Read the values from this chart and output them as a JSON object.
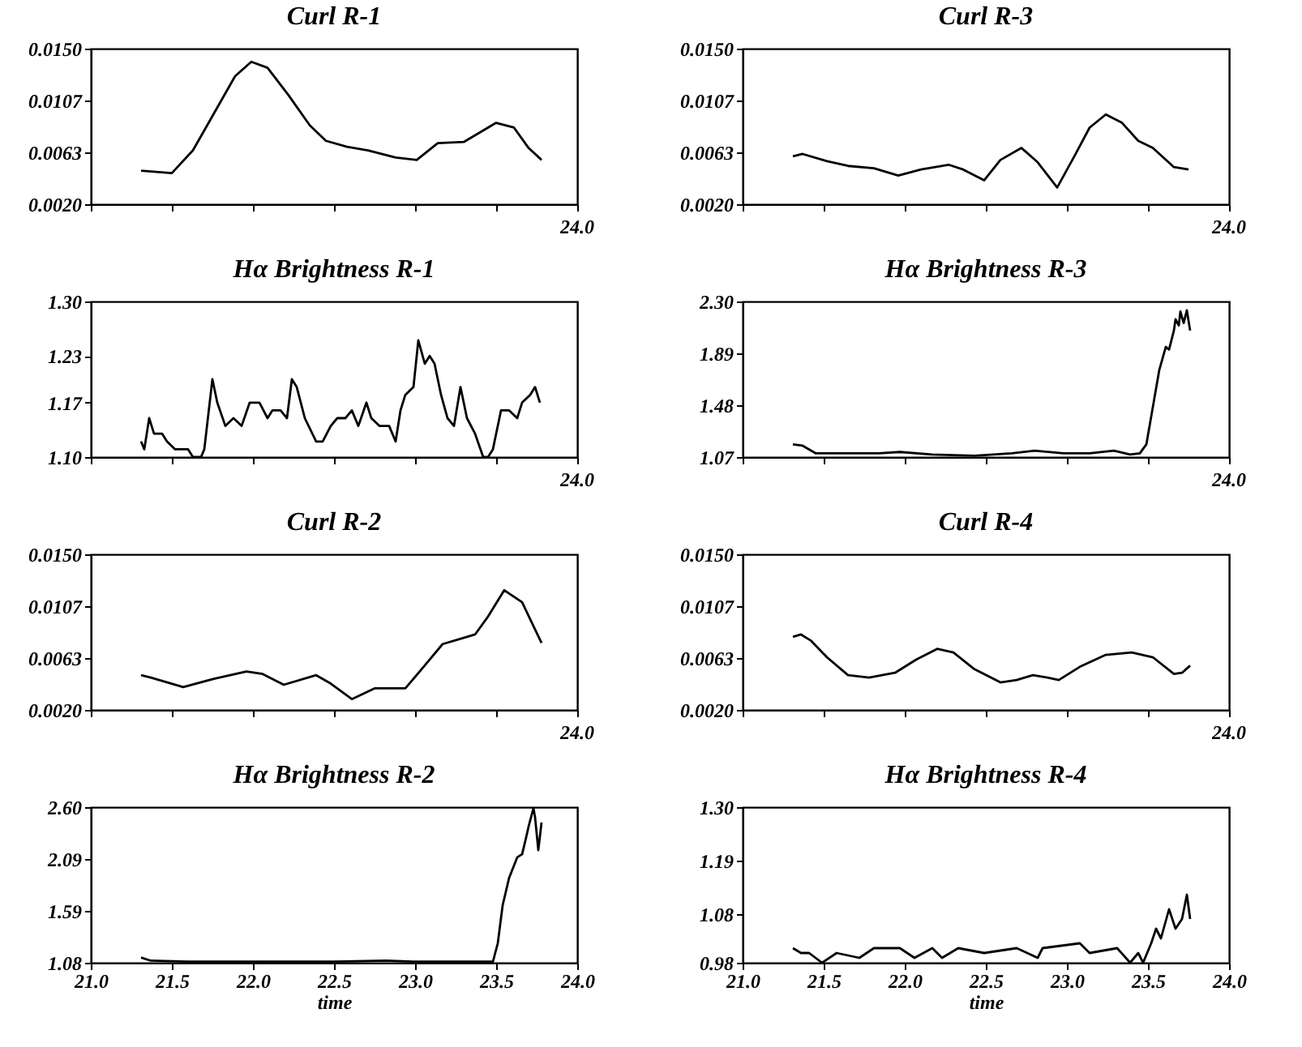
{
  "chart_data": [
    {
      "type": "line",
      "title": "Curl R-1",
      "annotations": [
        "24.0"
      ],
      "tick_labels": "y",
      "xlim": [
        21,
        24
      ],
      "ylim": [
        0.002,
        0.015
      ],
      "yticks": [
        {
          "value": 0.002,
          "label": "0.0020"
        },
        {
          "value": 0.0063,
          "label": "0.0063"
        },
        {
          "value": 0.0107,
          "label": "0.0107"
        },
        {
          "value": 0.015,
          "label": "0.0150"
        }
      ],
      "x": [
        21.31,
        21.5,
        21.63,
        21.76,
        21.89,
        21.99,
        22.09,
        22.22,
        22.35,
        22.45,
        22.58,
        22.71,
        22.88,
        23.01,
        23.14,
        23.3,
        23.5,
        23.61,
        23.7,
        23.78
      ],
      "series": [
        {
          "color": "#000000",
          "values": [
            0.0048,
            0.0046,
            0.0065,
            0.0096,
            0.0127,
            0.0139,
            0.0134,
            0.0111,
            0.0086,
            0.0073,
            0.0068,
            0.0065,
            0.0059,
            0.0057,
            0.0071,
            0.0072,
            0.0088,
            0.0084,
            0.0067,
            0.0057
          ]
        }
      ]
    },
    {
      "type": "line",
      "title": "Curl R-3",
      "annotations": [
        "24.0"
      ],
      "tick_labels": "y",
      "xlim": [
        21,
        24
      ],
      "ylim": [
        0.002,
        0.015
      ],
      "yticks": [
        {
          "value": 0.002,
          "label": "0.0020"
        },
        {
          "value": 0.0063,
          "label": "0.0063"
        },
        {
          "value": 0.0107,
          "label": "0.0107"
        },
        {
          "value": 0.015,
          "label": "0.0150"
        }
      ],
      "x": [
        21.31,
        21.37,
        21.52,
        21.65,
        21.81,
        21.96,
        22.1,
        22.27,
        22.36,
        22.49,
        22.59,
        22.72,
        22.82,
        22.94,
        23.05,
        23.14,
        23.24,
        23.34,
        23.44,
        23.53,
        23.66,
        23.75
      ],
      "series": [
        {
          "color": "#000000",
          "values": [
            0.006,
            0.0062,
            0.0056,
            0.0052,
            0.005,
            0.0044,
            0.0049,
            0.0053,
            0.0049,
            0.004,
            0.0057,
            0.0067,
            0.0055,
            0.0034,
            0.0061,
            0.0084,
            0.0095,
            0.0088,
            0.0073,
            0.0067,
            0.0051,
            0.0049
          ]
        }
      ]
    },
    {
      "type": "line",
      "title": "Hα Brightness R-1",
      "annotations": [
        "24.0"
      ],
      "tick_labels": "y",
      "xlim": [
        21,
        24
      ],
      "ylim": [
        1.1,
        1.3
      ],
      "yticks": [
        {
          "value": 1.1,
          "label": "1.10"
        },
        {
          "value": 1.17,
          "label": "1.17"
        },
        {
          "value": 1.23,
          "label": "1.23"
        },
        {
          "value": 1.3,
          "label": "1.30"
        }
      ],
      "x": [
        21.31,
        21.33,
        21.36,
        21.39,
        21.44,
        21.47,
        21.52,
        21.55,
        21.6,
        21.63,
        21.68,
        21.7,
        21.75,
        21.78,
        21.83,
        21.88,
        21.93,
        21.98,
        22.04,
        22.09,
        22.12,
        22.17,
        22.21,
        22.24,
        22.27,
        22.32,
        22.39,
        22.43,
        22.48,
        22.52,
        22.57,
        22.61,
        22.65,
        22.7,
        22.73,
        22.78,
        22.84,
        22.88,
        22.91,
        22.94,
        22.99,
        23.02,
        23.06,
        23.09,
        23.12,
        23.16,
        23.2,
        23.24,
        23.28,
        23.32,
        23.37,
        23.42,
        23.45,
        23.48,
        23.53,
        23.58,
        23.63,
        23.66,
        23.71,
        23.74,
        23.77
      ],
      "series": [
        {
          "color": "#000000",
          "values": [
            1.12,
            1.11,
            1.15,
            1.13,
            1.13,
            1.12,
            1.11,
            1.11,
            1.11,
            1.1,
            1.1,
            1.11,
            1.2,
            1.17,
            1.14,
            1.15,
            1.14,
            1.17,
            1.17,
            1.15,
            1.16,
            1.16,
            1.15,
            1.2,
            1.19,
            1.15,
            1.12,
            1.12,
            1.14,
            1.15,
            1.15,
            1.16,
            1.14,
            1.17,
            1.15,
            1.14,
            1.14,
            1.12,
            1.16,
            1.18,
            1.19,
            1.25,
            1.22,
            1.23,
            1.22,
            1.18,
            1.15,
            1.14,
            1.19,
            1.15,
            1.13,
            1.1,
            1.1,
            1.11,
            1.16,
            1.16,
            1.15,
            1.17,
            1.18,
            1.19,
            1.17
          ]
        }
      ]
    },
    {
      "type": "line",
      "title": "Hα Brightness R-3",
      "annotations": [
        "24.0"
      ],
      "tick_labels": "y",
      "xlim": [
        21,
        24
      ],
      "ylim": [
        1.07,
        2.3
      ],
      "yticks": [
        {
          "value": 1.07,
          "label": "1.07"
        },
        {
          "value": 1.48,
          "label": "1.48"
        },
        {
          "value": 1.89,
          "label": "1.89"
        },
        {
          "value": 2.3,
          "label": "2.30"
        }
      ],
      "x": [
        21.31,
        21.37,
        21.45,
        21.58,
        21.84,
        21.97,
        22.17,
        22.43,
        22.66,
        22.8,
        22.98,
        23.14,
        23.29,
        23.39,
        23.45,
        23.49,
        23.52,
        23.57,
        23.61,
        23.63,
        23.66,
        23.67,
        23.69,
        23.7,
        23.72,
        23.74,
        23.76
      ],
      "series": [
        {
          "color": "#000000",
          "values": [
            1.17,
            1.16,
            1.1,
            1.1,
            1.1,
            1.11,
            1.09,
            1.08,
            1.1,
            1.12,
            1.1,
            1.1,
            1.12,
            1.09,
            1.1,
            1.17,
            1.39,
            1.76,
            1.94,
            1.92,
            2.07,
            2.16,
            2.11,
            2.22,
            2.13,
            2.23,
            2.07
          ]
        }
      ]
    },
    {
      "type": "line",
      "title": "Curl R-2",
      "annotations": [
        "24.0"
      ],
      "tick_labels": "y",
      "xlim": [
        21,
        24
      ],
      "ylim": [
        0.002,
        0.015
      ],
      "yticks": [
        {
          "value": 0.002,
          "label": "0.0020"
        },
        {
          "value": 0.0063,
          "label": "0.0063"
        },
        {
          "value": 0.0107,
          "label": "0.0107"
        },
        {
          "value": 0.015,
          "label": "0.0150"
        }
      ],
      "x": [
        21.31,
        21.37,
        21.57,
        21.76,
        21.96,
        22.06,
        22.19,
        22.39,
        22.48,
        22.61,
        22.75,
        22.94,
        23.04,
        23.17,
        23.27,
        23.37,
        23.45,
        23.55,
        23.66,
        23.73,
        23.78
      ],
      "series": [
        {
          "color": "#000000",
          "values": [
            0.0049,
            0.0047,
            0.0039,
            0.0046,
            0.0052,
            0.005,
            0.0041,
            0.0049,
            0.0042,
            0.0029,
            0.0038,
            0.0038,
            0.0054,
            0.0075,
            0.0079,
            0.0083,
            0.0098,
            0.012,
            0.011,
            0.009,
            0.0076
          ]
        }
      ]
    },
    {
      "type": "line",
      "title": "Curl R-4",
      "annotations": [
        "24.0"
      ],
      "tick_labels": "y",
      "xlim": [
        21,
        24
      ],
      "ylim": [
        0.002,
        0.015
      ],
      "yticks": [
        {
          "value": 0.002,
          "label": "0.0020"
        },
        {
          "value": 0.0063,
          "label": "0.0063"
        },
        {
          "value": 0.0107,
          "label": "0.0107"
        },
        {
          "value": 0.015,
          "label": "0.0150"
        }
      ],
      "x": [
        21.31,
        21.36,
        21.42,
        21.52,
        21.65,
        21.78,
        21.94,
        22.07,
        22.2,
        22.3,
        22.43,
        22.59,
        22.69,
        22.79,
        22.88,
        22.95,
        23.08,
        23.24,
        23.4,
        23.53,
        23.66,
        23.71,
        23.76
      ],
      "series": [
        {
          "color": "#000000",
          "values": [
            0.0081,
            0.0083,
            0.0078,
            0.0064,
            0.0049,
            0.0047,
            0.0051,
            0.0062,
            0.0071,
            0.0068,
            0.0054,
            0.0043,
            0.0045,
            0.0049,
            0.0047,
            0.0045,
            0.0056,
            0.0066,
            0.0068,
            0.0064,
            0.005,
            0.0051,
            0.0057
          ]
        }
      ]
    },
    {
      "type": "line",
      "title": "Hα Brightness R-2",
      "xlabel": "time",
      "xlim": [
        21,
        24
      ],
      "xticks": [
        {
          "value": 21,
          "label": "21.0"
        },
        {
          "value": 21.5,
          "label": "21.5"
        },
        {
          "value": 22,
          "label": "22.0"
        },
        {
          "value": 22.5,
          "label": "22.5"
        },
        {
          "value": 23,
          "label": "23.0"
        },
        {
          "value": 23.5,
          "label": "23.5"
        },
        {
          "value": 24,
          "label": "24.0"
        }
      ],
      "ylim": [
        1.08,
        2.6
      ],
      "yticks": [
        {
          "value": 1.08,
          "label": "1.08"
        },
        {
          "value": 1.59,
          "label": "1.59"
        },
        {
          "value": 2.09,
          "label": "2.09"
        },
        {
          "value": 2.6,
          "label": "2.60"
        }
      ],
      "x": [
        21.31,
        21.37,
        21.6,
        22.0,
        22.5,
        22.82,
        23.0,
        23.48,
        23.51,
        23.54,
        23.58,
        23.63,
        23.66,
        23.68,
        23.7,
        23.73,
        23.74,
        23.76,
        23.78
      ],
      "series": [
        {
          "color": "#000000",
          "values": [
            1.13,
            1.1,
            1.09,
            1.09,
            1.09,
            1.1,
            1.09,
            1.09,
            1.27,
            1.64,
            1.91,
            2.11,
            2.14,
            2.27,
            2.41,
            2.59,
            2.5,
            2.18,
            2.45
          ]
        }
      ]
    },
    {
      "type": "line",
      "title": "Hα Brightness R-4",
      "xlabel": "time",
      "xlim": [
        21,
        24
      ],
      "xticks": [
        {
          "value": 21,
          "label": "21.0"
        },
        {
          "value": 21.5,
          "label": "21.5"
        },
        {
          "value": 22,
          "label": "22.0"
        },
        {
          "value": 22.5,
          "label": "22.5"
        },
        {
          "value": 23,
          "label": "23.0"
        },
        {
          "value": 23.5,
          "label": "23.5"
        },
        {
          "value": 24,
          "label": "24.0"
        }
      ],
      "ylim": [
        0.98,
        1.3
      ],
      "yticks": [
        {
          "value": 0.98,
          "label": "0.98"
        },
        {
          "value": 1.08,
          "label": "1.08"
        },
        {
          "value": 1.19,
          "label": "1.19"
        },
        {
          "value": 1.3,
          "label": "1.30"
        }
      ],
      "x": [
        21.31,
        21.36,
        21.41,
        21.49,
        21.58,
        21.72,
        21.81,
        21.88,
        21.97,
        22.06,
        22.17,
        22.23,
        22.33,
        22.49,
        22.69,
        22.82,
        22.85,
        23.08,
        23.14,
        23.31,
        23.39,
        23.44,
        23.47,
        23.52,
        23.55,
        23.58,
        23.63,
        23.67,
        23.71,
        23.74,
        23.76
      ],
      "series": [
        {
          "color": "#000000",
          "values": [
            1.01,
            1.0,
            1.0,
            0.98,
            1.0,
            0.99,
            1.01,
            1.01,
            1.01,
            0.99,
            1.01,
            0.99,
            1.01,
            1.0,
            1.01,
            0.99,
            1.01,
            1.02,
            1.0,
            1.01,
            0.98,
            1.0,
            0.98,
            1.02,
            1.05,
            1.03,
            1.09,
            1.05,
            1.07,
            1.12,
            1.07
          ]
        }
      ]
    }
  ]
}
